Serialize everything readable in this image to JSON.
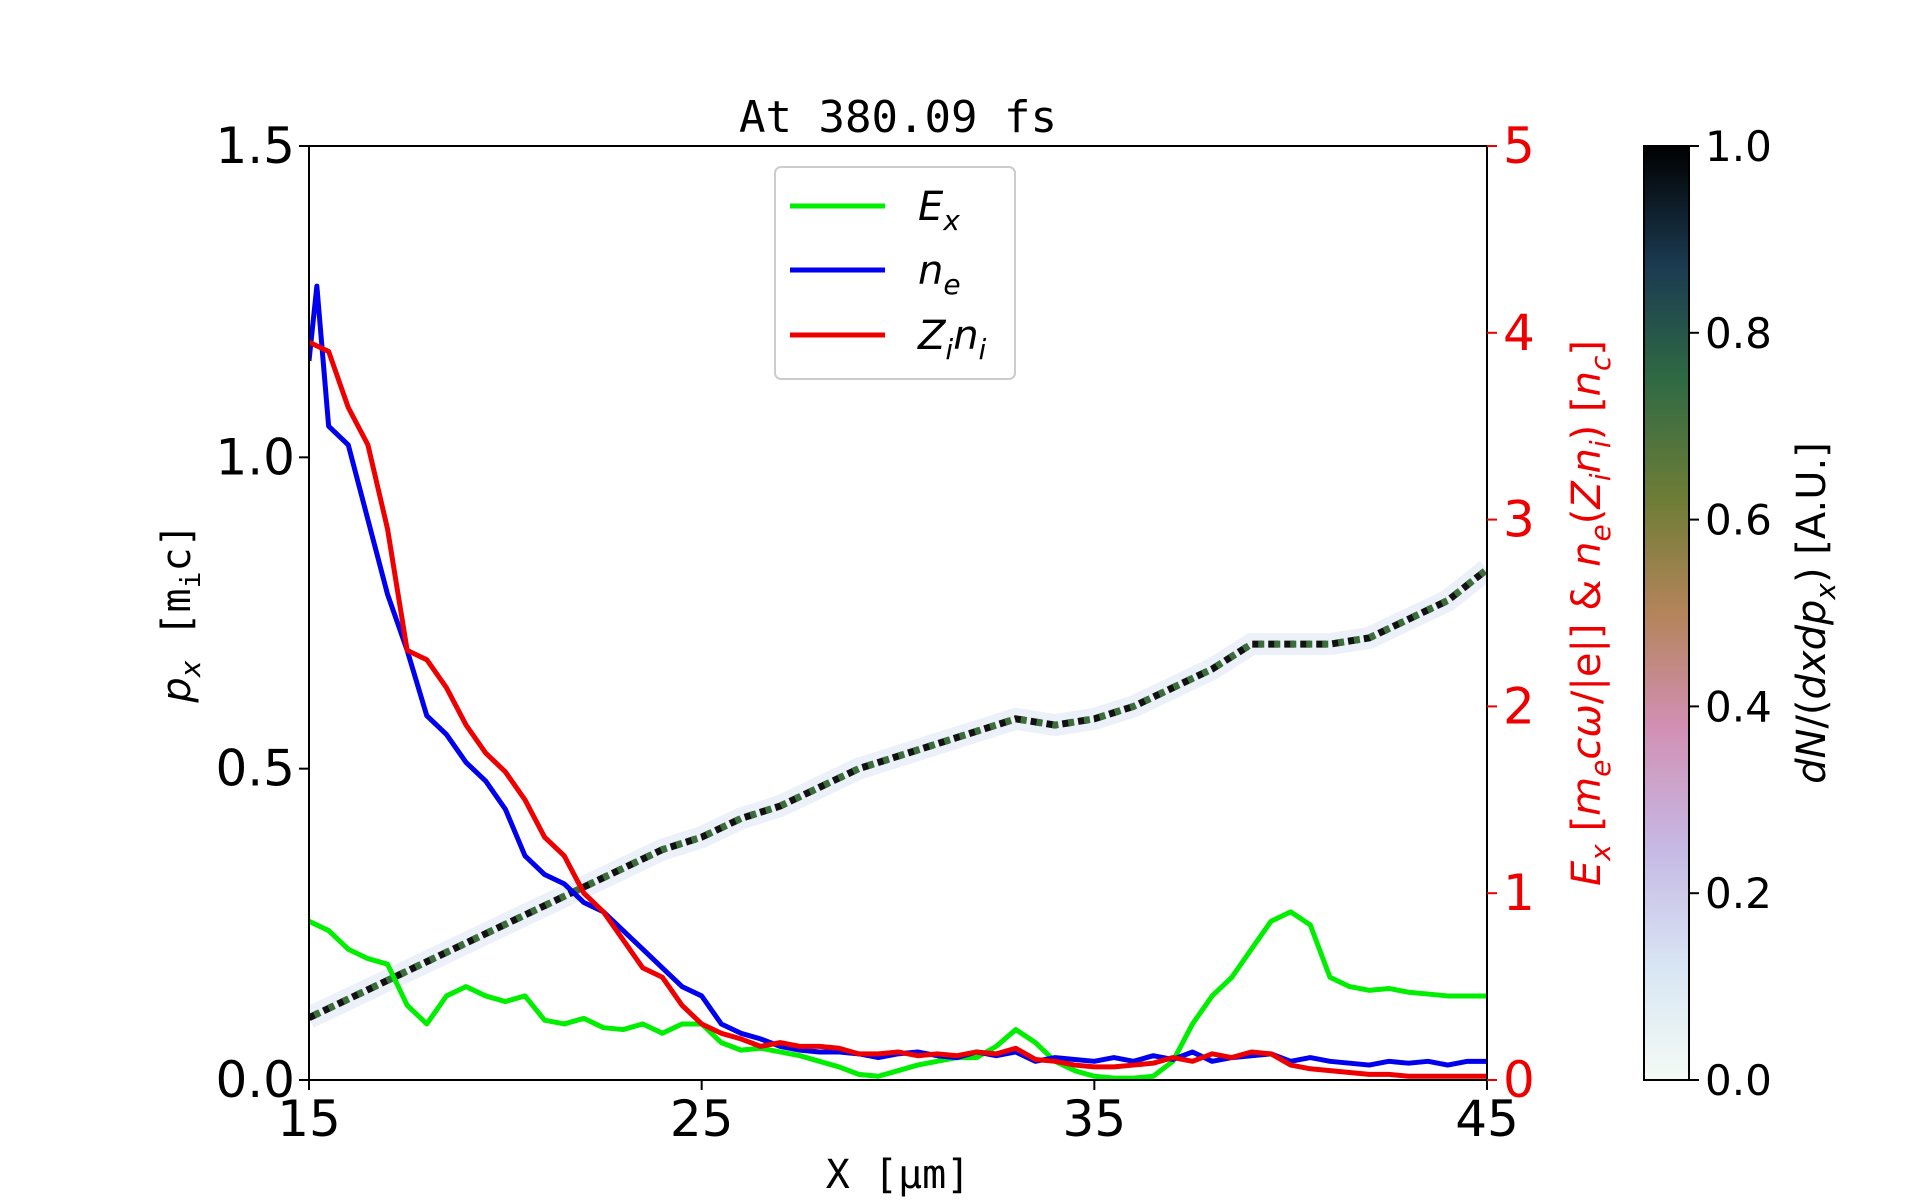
{
  "chart_data": {
    "type": "line",
    "title": "At 380.09 fs",
    "xlabel": "X [μm]",
    "ylabel_left": "p_x [m_ic]",
    "ylabel_right": "E_x [m_ecω/|e|] & n_e(Z_in_i) [n_c]",
    "colorbar_label": "dN/(dxdp_x) [A.U.]",
    "xlim": [
      15,
      45
    ],
    "ylim_left": [
      0,
      1.5
    ],
    "ylim_right": [
      0,
      5
    ],
    "colorbar_range": [
      0,
      1
    ],
    "x_ticks": [
      "15",
      "25",
      "35",
      "45"
    ],
    "y_left_ticks": [
      "0.0",
      "0.5",
      "1.0",
      "1.5"
    ],
    "y_right_ticks": [
      "0",
      "1",
      "2",
      "3",
      "4",
      "5"
    ],
    "colorbar_ticks": [
      "0.0",
      "0.2",
      "0.4",
      "0.6",
      "0.8",
      "1.0"
    ],
    "colorbar_colormap": "cubehelix_r",
    "legend_placement": "upper center",
    "grid": false,
    "series": [
      {
        "name": "E_x",
        "label": "E",
        "subscript": "x",
        "color": "#00ee00",
        "axis": "right",
        "x": [
          15,
          15.5,
          16,
          16.5,
          17,
          17.5,
          18,
          18.5,
          19,
          19.5,
          20,
          20.5,
          21,
          21.5,
          22,
          22.5,
          23,
          23.5,
          24,
          24.5,
          25,
          25.5,
          26,
          26.5,
          27,
          27.5,
          28,
          28.5,
          29,
          29.5,
          30,
          30.5,
          31,
          31.5,
          32,
          32.5,
          33,
          33.5,
          34,
          34.5,
          35,
          35.5,
          36,
          36.5,
          37,
          37.5,
          38,
          38.5,
          39,
          39.5,
          40,
          40.5,
          41,
          41.5,
          42,
          42.5,
          43,
          43.5,
          44,
          44.5,
          45
        ],
        "y": [
          0.85,
          0.8,
          0.7,
          0.65,
          0.62,
          0.4,
          0.3,
          0.45,
          0.5,
          0.45,
          0.42,
          0.45,
          0.32,
          0.3,
          0.33,
          0.28,
          0.27,
          0.3,
          0.25,
          0.3,
          0.3,
          0.2,
          0.16,
          0.17,
          0.15,
          0.13,
          0.1,
          0.07,
          0.03,
          0.02,
          0.05,
          0.08,
          0.1,
          0.12,
          0.12,
          0.18,
          0.27,
          0.2,
          0.1,
          0.05,
          0.02,
          0.01,
          0.01,
          0.02,
          0.1,
          0.3,
          0.45,
          0.55,
          0.7,
          0.85,
          0.9,
          0.83,
          0.55,
          0.5,
          0.48,
          0.49,
          0.47,
          0.46,
          0.45,
          0.45,
          0.45
        ]
      },
      {
        "name": "n_e",
        "label": "n",
        "subscript": "e",
        "color": "#0000ee",
        "axis": "right",
        "x": [
          15,
          15.2,
          15.5,
          16,
          16.5,
          17,
          17.5,
          18,
          18.5,
          19,
          19.5,
          20,
          20.5,
          21,
          21.5,
          22,
          22.5,
          23,
          23.5,
          24,
          24.5,
          25,
          25.5,
          26,
          26.5,
          27,
          27.5,
          28,
          28.5,
          29,
          29.5,
          30,
          30.5,
          31,
          31.5,
          32,
          32.5,
          33,
          33.5,
          34,
          34.5,
          35,
          35.5,
          36,
          36.5,
          37,
          37.5,
          38,
          38.5,
          39,
          39.5,
          40,
          40.5,
          41,
          41.5,
          42,
          42.5,
          43,
          43.5,
          44,
          44.5,
          45
        ],
        "y": [
          3.85,
          4.25,
          3.5,
          3.4,
          3.0,
          2.6,
          2.3,
          1.95,
          1.85,
          1.7,
          1.6,
          1.45,
          1.2,
          1.1,
          1.05,
          0.95,
          0.9,
          0.8,
          0.7,
          0.6,
          0.5,
          0.45,
          0.3,
          0.25,
          0.22,
          0.18,
          0.16,
          0.15,
          0.15,
          0.14,
          0.12,
          0.14,
          0.15,
          0.13,
          0.12,
          0.15,
          0.13,
          0.15,
          0.1,
          0.12,
          0.11,
          0.1,
          0.12,
          0.1,
          0.13,
          0.11,
          0.15,
          0.1,
          0.12,
          0.13,
          0.14,
          0.1,
          0.12,
          0.1,
          0.09,
          0.08,
          0.1,
          0.09,
          0.1,
          0.08,
          0.1,
          0.1
        ]
      },
      {
        "name": "Z_in_i",
        "label": "Z",
        "subscript": "i",
        "label2": "n",
        "subscript2": "i",
        "color": "#ee0000",
        "axis": "right",
        "x": [
          15,
          15.5,
          16,
          16.5,
          17,
          17.5,
          18,
          18.5,
          19,
          19.5,
          20,
          20.5,
          21,
          21.5,
          22,
          22.5,
          23,
          23.5,
          24,
          24.5,
          25,
          25.5,
          26,
          26.5,
          27,
          27.5,
          28,
          28.5,
          29,
          29.5,
          30,
          30.5,
          31,
          31.5,
          32,
          32.5,
          33,
          33.5,
          34,
          34.5,
          35,
          35.5,
          36,
          36.5,
          37,
          37.5,
          38,
          38.5,
          39,
          39.5,
          40,
          40.5,
          41,
          41.5,
          42,
          42.5,
          43,
          43.5,
          44,
          44.5,
          45
        ],
        "y": [
          3.95,
          3.9,
          3.6,
          3.4,
          2.95,
          2.3,
          2.25,
          2.1,
          1.9,
          1.75,
          1.65,
          1.5,
          1.3,
          1.2,
          1.0,
          0.9,
          0.75,
          0.6,
          0.55,
          0.4,
          0.3,
          0.25,
          0.22,
          0.18,
          0.2,
          0.18,
          0.18,
          0.17,
          0.14,
          0.14,
          0.15,
          0.13,
          0.14,
          0.13,
          0.15,
          0.14,
          0.17,
          0.11,
          0.1,
          0.08,
          0.07,
          0.07,
          0.08,
          0.09,
          0.12,
          0.1,
          0.14,
          0.12,
          0.15,
          0.14,
          0.08,
          0.06,
          0.05,
          0.04,
          0.03,
          0.03,
          0.02,
          0.02,
          0.02,
          0.02,
          0.02
        ]
      }
    ],
    "phase_space": {
      "description_axis": "left",
      "x": [
        15,
        16,
        17,
        18,
        19,
        20,
        21,
        22,
        23,
        24,
        25,
        26,
        27,
        28,
        29,
        30,
        31,
        32,
        33,
        34,
        35,
        36,
        37,
        38,
        39,
        40,
        41,
        42,
        43,
        44,
        45
      ],
      "y": [
        0.1,
        0.13,
        0.16,
        0.19,
        0.22,
        0.25,
        0.28,
        0.31,
        0.34,
        0.37,
        0.39,
        0.42,
        0.44,
        0.47,
        0.5,
        0.52,
        0.54,
        0.56,
        0.58,
        0.57,
        0.58,
        0.6,
        0.63,
        0.66,
        0.7,
        0.7,
        0.7,
        0.71,
        0.74,
        0.77,
        0.82
      ]
    }
  }
}
